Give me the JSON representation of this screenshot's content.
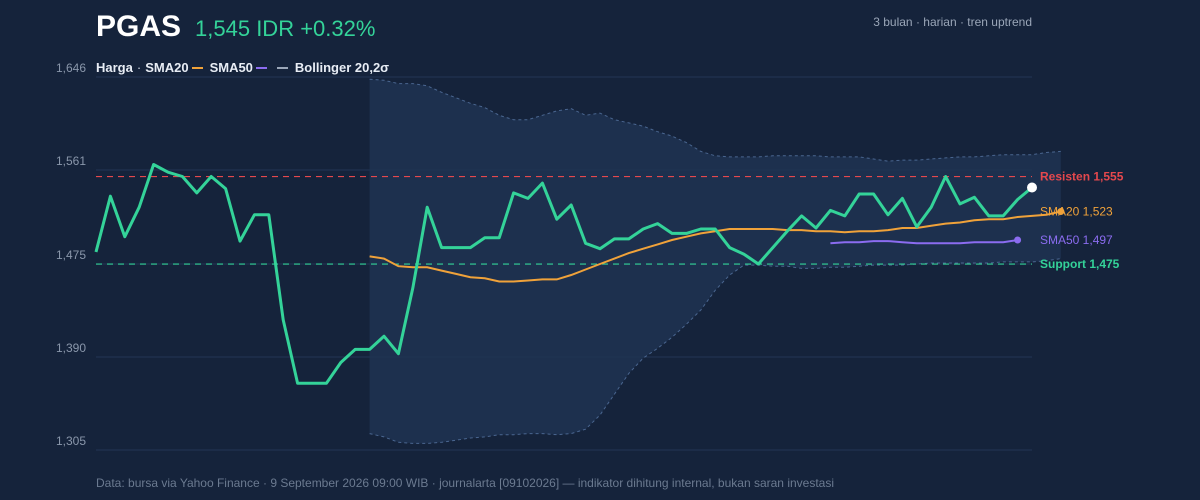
{
  "header": {
    "ticker": "PGAS",
    "quote": "1,545 IDR +0.32%",
    "subtitle": "3 bulan · harian · tren uptrend"
  },
  "legend": {
    "price": "Harga",
    "separator": "·",
    "sma20": "SMA20",
    "sma50": "SMA50",
    "bollinger": "Bollinger 20,2σ"
  },
  "footer": "Data: bursa via Yahoo Finance · 9 September 2026 09:00 WIB · journalarta [09102026] — indikator dihitung internal, bukan saran investasi",
  "colors": {
    "background": "#15233b",
    "price": "#34d399",
    "sma20": "#f0a23a",
    "sma50": "#8b6cf0",
    "resistance": "#e5484d",
    "support": "#34d399",
    "band_fill": "#1f3252",
    "band_line": "#4a6690",
    "grid": "#243654"
  },
  "chart_data": {
    "type": "line",
    "ylim": [
      1305,
      1646
    ],
    "y_ticks": [
      "1,305",
      "1,390",
      "1,475",
      "1,561",
      "1,646"
    ],
    "y_tick_values": [
      1305,
      1390,
      1475,
      1561,
      1646
    ],
    "x_count": 66,
    "grid": true,
    "series": [
      {
        "name": "Harga",
        "values": [
          1486,
          1537,
          1500,
          1527,
          1566,
          1559,
          1555,
          1540,
          1555,
          1544,
          1496,
          1520,
          1520,
          1424,
          1366,
          1366,
          1366,
          1385,
          1397,
          1397,
          1409,
          1393,
          1453,
          1527,
          1490,
          1490,
          1490,
          1499,
          1499,
          1540,
          1535,
          1549,
          1516,
          1529,
          1494,
          1489,
          1498,
          1498,
          1507,
          1512,
          1503,
          1503,
          1507,
          1507,
          1490,
          1484,
          1475,
          1490,
          1505,
          1519,
          1508,
          1524,
          1519,
          1539,
          1539,
          1520,
          1535,
          1509,
          1527,
          1555,
          1530,
          1536,
          1519,
          1519,
          1534,
          1545
        ],
        "x_start": 0
      },
      {
        "name": "SMA20",
        "values": [
          1482,
          1480,
          1473,
          1472,
          1472,
          1469,
          1466,
          1463,
          1462,
          1459,
          1459,
          1460,
          1461,
          1461,
          1465,
          1470,
          1475,
          1480,
          1485,
          1489,
          1493,
          1497,
          1500,
          1503,
          1505,
          1507,
          1507,
          1507,
          1507,
          1506,
          1506,
          1505,
          1505,
          1504,
          1505,
          1505,
          1506,
          1508,
          1508,
          1510,
          1512,
          1513,
          1515,
          1516,
          1516,
          1518,
          1519,
          1520,
          1523
        ],
        "x_start": 19
      },
      {
        "name": "SMA50",
        "values": [
          1494,
          1495,
          1495,
          1496,
          1496,
          1495,
          1494,
          1494,
          1494,
          1494,
          1495,
          1495,
          1495,
          1497
        ],
        "x_start": 51
      },
      {
        "name": "Bollinger upper",
        "values": [
          1644,
          1643,
          1640,
          1640,
          1638,
          1632,
          1627,
          1622,
          1618,
          1611,
          1607,
          1607,
          1611,
          1615,
          1617,
          1611,
          1613,
          1607,
          1604,
          1601,
          1596,
          1592,
          1586,
          1578,
          1574,
          1573,
          1573,
          1573,
          1574,
          1574,
          1574,
          1574,
          1573,
          1573,
          1573,
          1571,
          1569,
          1570,
          1570,
          1571,
          1572,
          1573,
          1573,
          1574,
          1575,
          1575,
          1575,
          1577,
          1578
        ],
        "x_start": 19
      },
      {
        "name": "Bollinger lower",
        "values": [
          1320,
          1317,
          1312,
          1311,
          1311,
          1312,
          1314,
          1316,
          1317,
          1319,
          1319,
          1320,
          1320,
          1319,
          1320,
          1324,
          1337,
          1356,
          1375,
          1389,
          1398,
          1408,
          1420,
          1433,
          1451,
          1465,
          1474,
          1474,
          1473,
          1473,
          1471,
          1471,
          1472,
          1472,
          1473,
          1474,
          1474,
          1474,
          1475,
          1476,
          1476,
          1476,
          1476,
          1476,
          1477,
          1477,
          1477,
          1478,
          1480
        ],
        "x_start": 19
      }
    ],
    "resistance": {
      "value": 1555,
      "label": "Resisten 1,555"
    },
    "support": {
      "value": 1475,
      "label": "Support 1,475"
    },
    "end_labels": {
      "sma20": "SMA20 1,523",
      "sma50": "SMA50 1,497"
    }
  }
}
